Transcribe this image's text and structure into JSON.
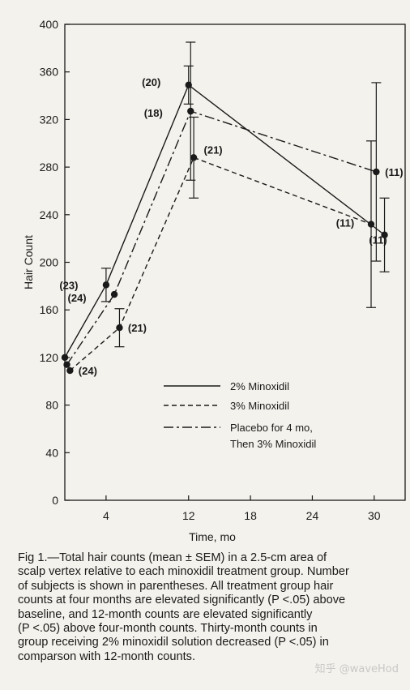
{
  "chart_data": {
    "type": "line",
    "xlabel": "Time, mo",
    "ylabel": "Hair Count",
    "xlim": [
      0,
      33
    ],
    "ylim": [
      0,
      400
    ],
    "x_ticks": [
      4,
      12,
      18,
      24,
      30
    ],
    "y_ticks": [
      0,
      40,
      80,
      120,
      160,
      200,
      240,
      280,
      320,
      360,
      400
    ],
    "grid": false,
    "legend_position": "center-right",
    "series": [
      {
        "name": "2% Minoxidil",
        "style": "solid",
        "points": [
          {
            "x": 0,
            "y": 120,
            "sem": 0,
            "n": ""
          },
          {
            "x": 4,
            "y": 181,
            "sem": 14,
            "n": "(23)"
          },
          {
            "x": 12,
            "y": 349,
            "sem": 16,
            "n": "(20)"
          },
          {
            "x": 31,
            "y": 223,
            "sem": 31,
            "n": "(11)"
          }
        ]
      },
      {
        "name": "3% Minoxidil",
        "style": "dashed",
        "points": [
          {
            "x": 0.5,
            "y": 109,
            "sem": 0,
            "n": "(24)"
          },
          {
            "x": 5.3,
            "y": 145,
            "sem": 16,
            "n": "(21)"
          },
          {
            "x": 12.5,
            "y": 288,
            "sem": 34,
            "n": "(21)"
          },
          {
            "x": 29.7,
            "y": 232,
            "sem": 70,
            "n": "(11)"
          }
        ]
      },
      {
        "name": "Placebo for 4 mo, Then 3% Minoxidil",
        "name_lines": [
          "Placebo for 4 mo,",
          "Then 3% Minoxidil"
        ],
        "style": "dashdot",
        "points": [
          {
            "x": 0.2,
            "y": 114,
            "sem": 0,
            "n": ""
          },
          {
            "x": 4.8,
            "y": 173,
            "sem": 0,
            "n": "(24)"
          },
          {
            "x": 12.2,
            "y": 327,
            "sem": 58,
            "n": "(18)"
          },
          {
            "x": 30.2,
            "y": 276,
            "sem": 75,
            "n": "(11)"
          }
        ]
      }
    ]
  },
  "caption": {
    "lines": [
      "Fig 1.—Total hair counts (mean ± SEM) in a 2.5-cm area of",
      "scalp vertex relative to each minoxidil treatment group. Number",
      "of subjects is shown in parentheses. All treatment group hair",
      "counts at four months are elevated significantly (P <.05) above",
      "baseline, and 12-month counts are elevated significantly",
      "(P <.05) above four-month counts. Thirty-month counts in",
      "group receiving 2% minoxidil solution decreased (P <.05) in",
      "comparson with 12-month counts."
    ]
  },
  "watermark": "知乎 @waveHod",
  "colors": {
    "ink": "#1a1a1a",
    "paper": "#f4f2ec",
    "watermark": "#c8c8c8"
  }
}
